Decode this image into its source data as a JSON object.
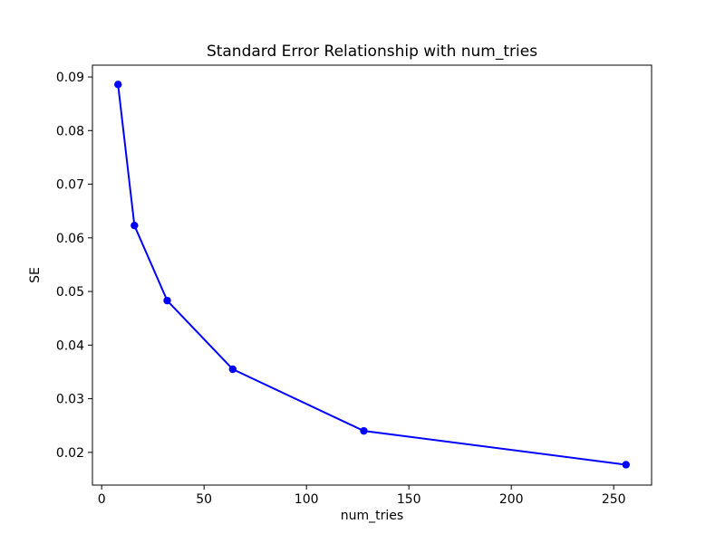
{
  "chart_data": {
    "type": "line",
    "title": "Standard Error Relationship with num_tries",
    "xlabel": "num_tries",
    "ylabel": "SE",
    "x": [
      8,
      16,
      32,
      64,
      128,
      256
    ],
    "y": [
      0.0886,
      0.0623,
      0.0483,
      0.0355,
      0.024,
      0.0177
    ],
    "series": [
      {
        "name": "SE",
        "x": [
          8,
          16,
          32,
          64,
          128,
          256
        ],
        "values": [
          0.0886,
          0.0623,
          0.0483,
          0.0355,
          0.024,
          0.0177
        ]
      }
    ],
    "xlim": [
      -4.5,
      268.5
    ],
    "ylim": [
      0.0139,
      0.0922
    ],
    "xticks": [
      0,
      50,
      100,
      150,
      200,
      250
    ],
    "xtick_labels": [
      "0",
      "50",
      "100",
      "150",
      "200",
      "250"
    ],
    "yticks": [
      0.02,
      0.03,
      0.04,
      0.05,
      0.06,
      0.07,
      0.08,
      0.09
    ],
    "ytick_labels": [
      "0.02",
      "0.03",
      "0.04",
      "0.05",
      "0.06",
      "0.07",
      "0.08",
      "0.09"
    ],
    "line_color": "#0000ff",
    "marker": "o",
    "marker_size": 4.2,
    "line_width": 2,
    "axis_color": "#000000",
    "background_color": "#ffffff",
    "grid": false,
    "legend_position": "none"
  }
}
